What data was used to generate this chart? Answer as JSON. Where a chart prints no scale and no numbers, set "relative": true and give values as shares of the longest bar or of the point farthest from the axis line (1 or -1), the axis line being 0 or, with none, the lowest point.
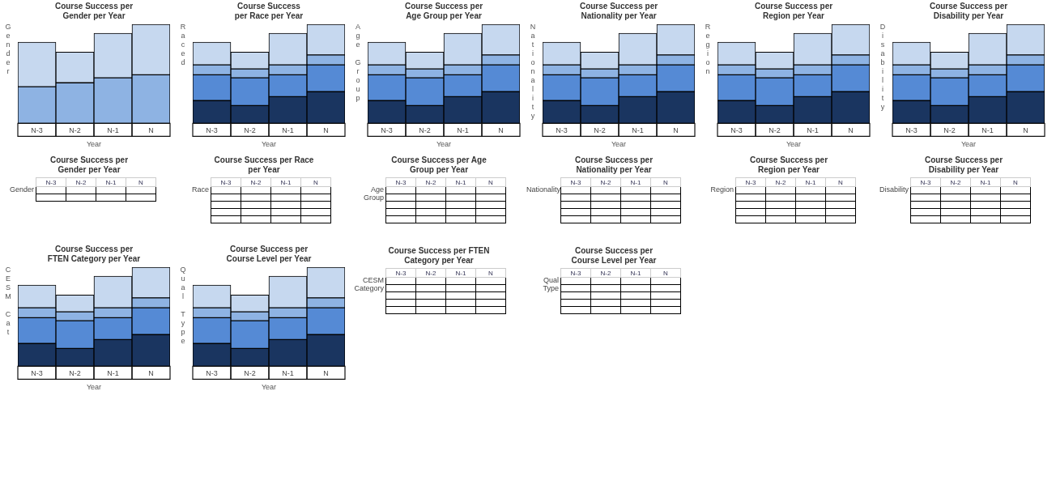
{
  "chart_data": [
    {
      "type": "bar",
      "title": "Course Success per Gender per Year",
      "xlabel": "Year",
      "ylabel": "Gender",
      "categories": [
        "N-3",
        "N-2",
        "N-1",
        "N"
      ],
      "stacked": true,
      "relative": true,
      "series": [
        {
          "color": "#8eb3e3",
          "values": [
            0.37,
            0.41,
            0.46,
            0.49
          ]
        },
        {
          "color": "#c6d8ef",
          "values": [
            0.45,
            0.31,
            0.45,
            0.51
          ]
        }
      ]
    },
    {
      "type": "bar",
      "title": "Course Success per Race per Year",
      "xlabel": "Year",
      "ylabel": "Raced",
      "categories": [
        "N-3",
        "N-2",
        "N-1",
        "N"
      ],
      "stacked": true,
      "relative": true,
      "series": [
        {
          "color": "#1a3560",
          "values": [
            0.23,
            0.18,
            0.27,
            0.32
          ]
        },
        {
          "color": "#558ad5",
          "values": [
            0.26,
            0.28,
            0.22,
            0.27
          ]
        },
        {
          "color": "#8eb3e3",
          "values": [
            0.1,
            0.09,
            0.1,
            0.1
          ]
        },
        {
          "color": "#c6d8ef",
          "values": [
            0.23,
            0.17,
            0.32,
            0.31
          ]
        }
      ]
    },
    {
      "type": "bar",
      "title": "Course Success per Age Group per Year",
      "xlabel": "Year",
      "ylabel": "Age Group",
      "categories": [
        "N-3",
        "N-2",
        "N-1",
        "N"
      ],
      "stacked": true,
      "relative": true,
      "series": [
        {
          "color": "#1a3560",
          "values": [
            0.23,
            0.18,
            0.27,
            0.32
          ]
        },
        {
          "color": "#558ad5",
          "values": [
            0.26,
            0.28,
            0.22,
            0.27
          ]
        },
        {
          "color": "#8eb3e3",
          "values": [
            0.1,
            0.09,
            0.1,
            0.1
          ]
        },
        {
          "color": "#c6d8ef",
          "values": [
            0.23,
            0.17,
            0.32,
            0.31
          ]
        }
      ]
    },
    {
      "type": "bar",
      "title": "Course Success per Nationality per Year",
      "xlabel": "Year",
      "ylabel": "Nationality",
      "categories": [
        "N-3",
        "N-2",
        "N-1",
        "N"
      ],
      "stacked": true,
      "relative": true,
      "series": [
        {
          "color": "#1a3560",
          "values": [
            0.23,
            0.18,
            0.27,
            0.32
          ]
        },
        {
          "color": "#558ad5",
          "values": [
            0.26,
            0.28,
            0.22,
            0.27
          ]
        },
        {
          "color": "#8eb3e3",
          "values": [
            0.1,
            0.09,
            0.1,
            0.1
          ]
        },
        {
          "color": "#c6d8ef",
          "values": [
            0.23,
            0.17,
            0.32,
            0.31
          ]
        }
      ]
    },
    {
      "type": "bar",
      "title": "Course Success per Region per Year",
      "xlabel": "Year",
      "ylabel": "Region",
      "categories": [
        "N-3",
        "N-2",
        "N-1",
        "N"
      ],
      "stacked": true,
      "relative": true,
      "series": [
        {
          "color": "#1a3560",
          "values": [
            0.23,
            0.18,
            0.27,
            0.32
          ]
        },
        {
          "color": "#558ad5",
          "values": [
            0.26,
            0.28,
            0.22,
            0.27
          ]
        },
        {
          "color": "#8eb3e3",
          "values": [
            0.1,
            0.09,
            0.1,
            0.1
          ]
        },
        {
          "color": "#c6d8ef",
          "values": [
            0.23,
            0.17,
            0.32,
            0.31
          ]
        }
      ]
    },
    {
      "type": "bar",
      "title": "Course Success per Disability per Year",
      "xlabel": "Year",
      "ylabel": "Disability",
      "categories": [
        "N-3",
        "N-2",
        "N-1",
        "N"
      ],
      "stacked": true,
      "relative": true,
      "series": [
        {
          "color": "#1a3560",
          "values": [
            0.23,
            0.18,
            0.27,
            0.32
          ]
        },
        {
          "color": "#558ad5",
          "values": [
            0.26,
            0.28,
            0.22,
            0.27
          ]
        },
        {
          "color": "#8eb3e3",
          "values": [
            0.1,
            0.09,
            0.1,
            0.1
          ]
        },
        {
          "color": "#c6d8ef",
          "values": [
            0.23,
            0.17,
            0.32,
            0.31
          ]
        }
      ]
    },
    {
      "type": "other",
      "title": "Course Success per Gender per Year",
      "ylabel": "Gender",
      "categories": [
        "N-3",
        "N-2",
        "N-1",
        "N"
      ],
      "y_categories": [
        null,
        null
      ]
    },
    {
      "type": "other",
      "title": "Course Success per Race per Year",
      "ylabel": "Race",
      "categories": [
        "N-3",
        "N-2",
        "N-1",
        "N"
      ],
      "y_categories": [
        null,
        null,
        null,
        null,
        null
      ]
    },
    {
      "type": "other",
      "title": "Course Success per Age Group per Year",
      "ylabel": "Age Group",
      "categories": [
        "N-3",
        "N-2",
        "N-1",
        "N"
      ],
      "y_categories": [
        null,
        null,
        null,
        null,
        null
      ]
    },
    {
      "type": "other",
      "title": "Course Success per Nationality per Year",
      "ylabel": "Nationality",
      "categories": [
        "N-3",
        "N-2",
        "N-1",
        "N"
      ],
      "y_categories": [
        null,
        null,
        null,
        null,
        null
      ]
    },
    {
      "type": "other",
      "title": "Course Success per Region per Year",
      "ylabel": "Region",
      "categories": [
        "N-3",
        "N-2",
        "N-1",
        "N"
      ],
      "y_categories": [
        null,
        null,
        null,
        null,
        null
      ]
    },
    {
      "type": "other",
      "title": "Course Success per Disability per Year",
      "ylabel": "Disability",
      "categories": [
        "N-3",
        "N-2",
        "N-1",
        "N"
      ],
      "y_categories": [
        null,
        null,
        null,
        null,
        null
      ]
    },
    {
      "type": "bar",
      "title": "Course Success per FTEN Category per Year",
      "xlabel": "Year",
      "ylabel": "CESM Cat",
      "categories": [
        "N-3",
        "N-2",
        "N-1",
        "N"
      ],
      "stacked": true,
      "relative": true,
      "series": [
        {
          "color": "#1a3560",
          "values": [
            0.23,
            0.18,
            0.27,
            0.32
          ]
        },
        {
          "color": "#558ad5",
          "values": [
            0.26,
            0.28,
            0.22,
            0.27
          ]
        },
        {
          "color": "#8eb3e3",
          "values": [
            0.1,
            0.09,
            0.1,
            0.1
          ]
        },
        {
          "color": "#c6d8ef",
          "values": [
            0.23,
            0.17,
            0.32,
            0.31
          ]
        }
      ]
    },
    {
      "type": "bar",
      "title": "Course Success per Course Level per Year",
      "xlabel": "Year",
      "ylabel": "Qual Type",
      "categories": [
        "N-3",
        "N-2",
        "N-1",
        "N"
      ],
      "stacked": true,
      "relative": true,
      "series": [
        {
          "color": "#1a3560",
          "values": [
            0.23,
            0.18,
            0.27,
            0.32
          ]
        },
        {
          "color": "#558ad5",
          "values": [
            0.26,
            0.28,
            0.22,
            0.27
          ]
        },
        {
          "color": "#8eb3e3",
          "values": [
            0.1,
            0.09,
            0.1,
            0.1
          ]
        },
        {
          "color": "#c6d8ef",
          "values": [
            0.23,
            0.17,
            0.32,
            0.31
          ]
        }
      ]
    },
    {
      "type": "other",
      "title": "Course Success per FTEN Category per Year",
      "ylabel": "CESM Category",
      "categories": [
        "N-3",
        "N-2",
        "N-1",
        "N"
      ],
      "y_categories": [
        null,
        null,
        null,
        null,
        null
      ]
    },
    {
      "type": "other",
      "title": "Course Success per Course Level per Year",
      "ylabel": "Qual Type",
      "categories": [
        "N-3",
        "N-2",
        "N-1",
        "N"
      ],
      "y_categories": [
        null,
        null,
        null,
        null,
        null
      ]
    }
  ]
}
